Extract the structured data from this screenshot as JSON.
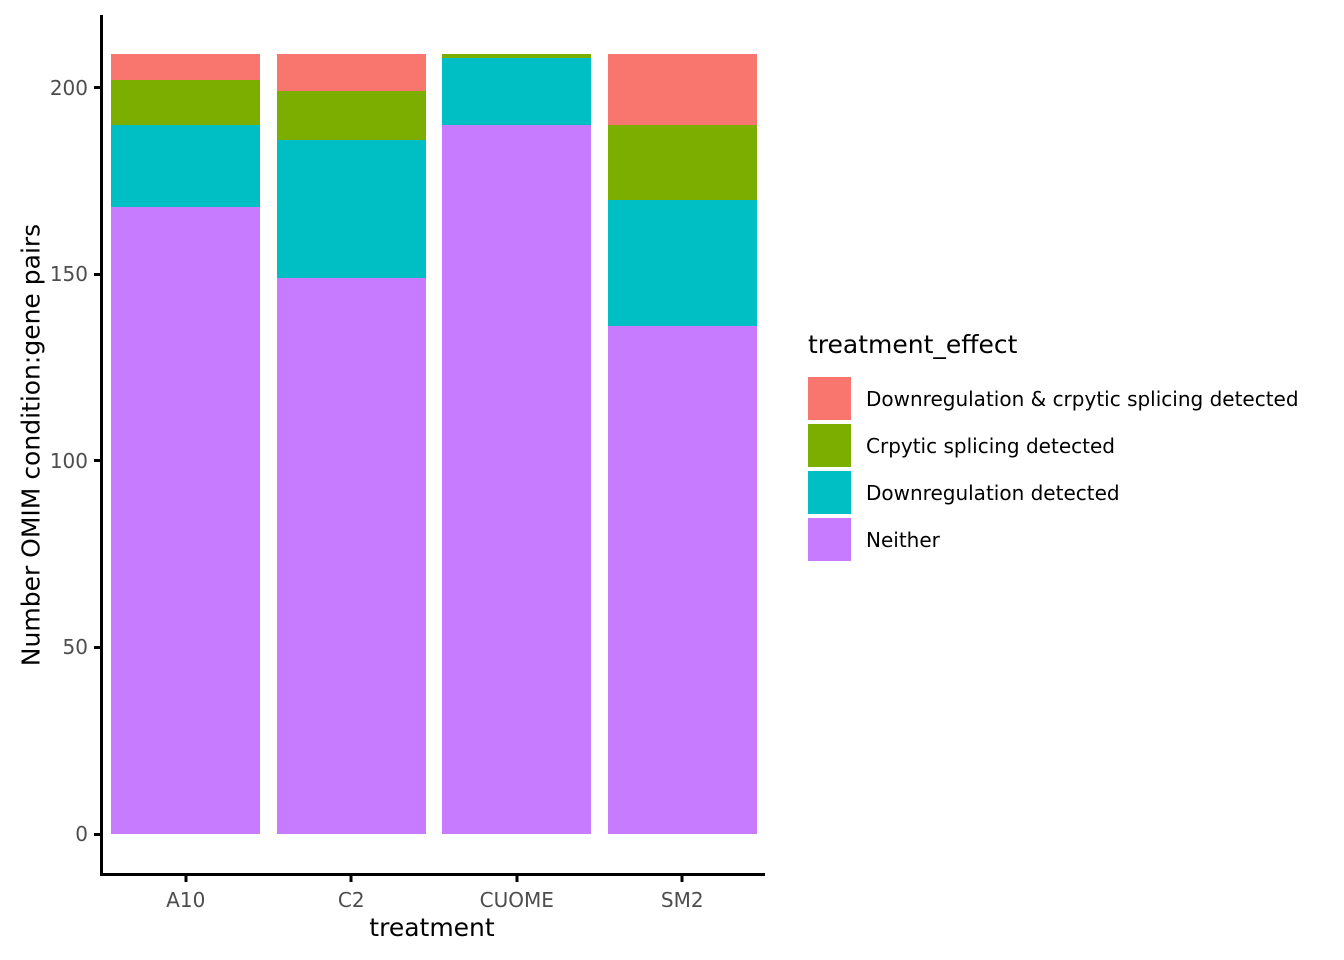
{
  "chart_data": {
    "type": "bar",
    "stacked": true,
    "xlabel": "treatment",
    "ylabel": "Number OMIM condition:gene pairs",
    "categories": [
      "A10",
      "C2",
      "CUOME",
      "SM2"
    ],
    "series": [
      {
        "name": "Neither",
        "color": "#C77CFF",
        "values": [
          168,
          149,
          190,
          136
        ]
      },
      {
        "name": "Downregulation detected",
        "color": "#00BFC4",
        "values": [
          22,
          37,
          18,
          34
        ]
      },
      {
        "name": "Crpytic splicing detected",
        "color": "#7CAE00",
        "values": [
          12,
          13,
          1,
          20
        ]
      },
      {
        "name": "Downregulation & crpytic splicing detected",
        "color": "#F8766D",
        "values": [
          7,
          10,
          0,
          19
        ]
      }
    ],
    "bar_totals": [
      209,
      209,
      209,
      209
    ],
    "yticks": [
      0,
      50,
      100,
      150,
      200
    ],
    "ylim": [
      -10.45,
      219.45
    ],
    "bar_width_frac": 0.9,
    "grid": false,
    "legend_position": "right"
  },
  "legend": {
    "title": "treatment_effect",
    "items": [
      {
        "label": "Downregulation & crpytic splicing detected",
        "color": "#F8766D"
      },
      {
        "label": "Crpytic splicing detected",
        "color": "#7CAE00"
      },
      {
        "label": "Downregulation detected",
        "color": "#00BFC4"
      },
      {
        "label": "Neither",
        "color": "#C77CFF"
      }
    ]
  },
  "axis": {
    "tick_text_color": "#4D4D4D",
    "line_color": "#000000"
  }
}
